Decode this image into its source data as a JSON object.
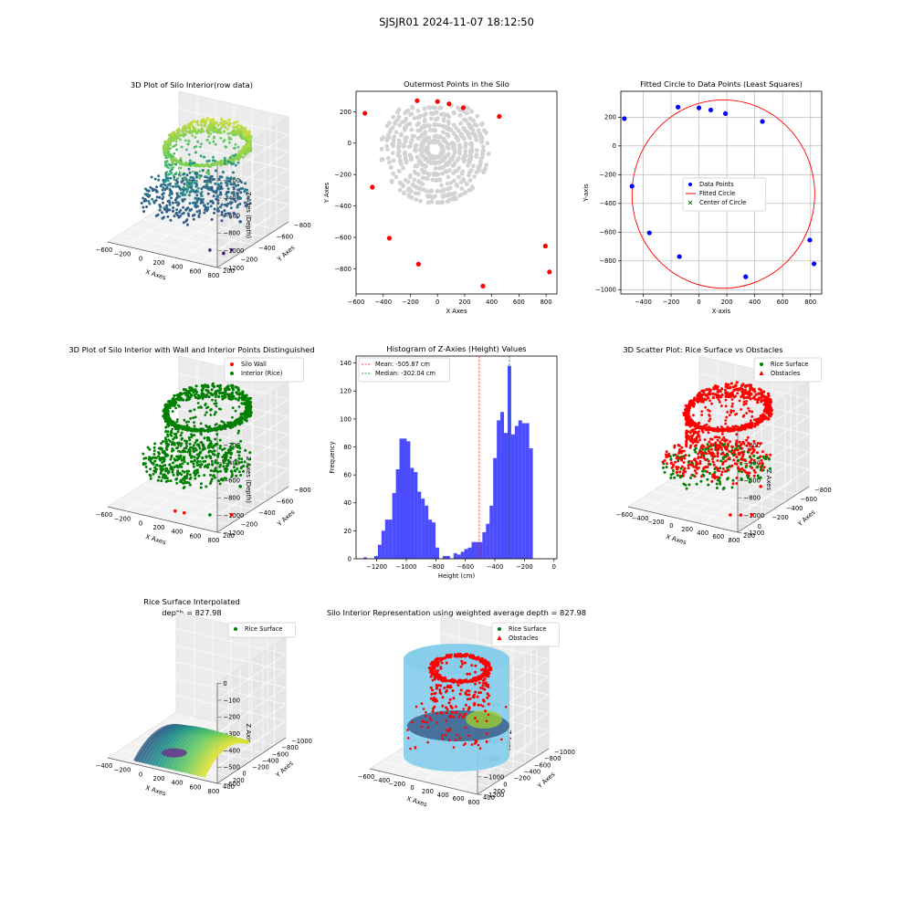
{
  "figure": {
    "suptitle": "SJSJR01 2024-11-07 18:12:50"
  },
  "charts": [
    {
      "id": "p1",
      "type": "scatter3d",
      "title": "3D Plot of Silo Interior(row data)",
      "xlabel": "X Axes",
      "ylabel": "Y Axes",
      "zlabel": "Z Axes (Depth)",
      "xticks": [
        "−600",
        "−200",
        "0",
        "200",
        "400",
        "600",
        "800"
      ],
      "yticks": [
        "200",
        "−200",
        "−400",
        "−600",
        "−800"
      ],
      "zticks": [
        "0",
        "−200",
        "−400",
        "−600",
        "−800",
        "−1000",
        "−1200"
      ],
      "colormap": "viridis"
    },
    {
      "id": "p2",
      "type": "scatter",
      "title": "Outermost Points in the Silo",
      "xlabel": "X Axes",
      "ylabel": "Y Axes",
      "xlim": [
        -600,
        880
      ],
      "ylim": [
        -960,
        330
      ],
      "xticks": [
        -600,
        -400,
        -200,
        0,
        200,
        400,
        600,
        800
      ],
      "yticks": [
        200,
        0,
        -200,
        -400,
        -600,
        -800
      ],
      "grid": false,
      "series": [
        {
          "color": "#d3d3d3",
          "role": "all points"
        },
        {
          "color": "#ff0000",
          "role": "outermost points",
          "x": [
            -535,
            -150,
            0,
            85,
            190,
            455,
            -480,
            -355,
            -140,
            335,
            795,
            825
          ],
          "y": [
            190,
            270,
            265,
            250,
            225,
            170,
            -280,
            -605,
            -770,
            -910,
            -655,
            -820
          ]
        }
      ]
    },
    {
      "id": "p3",
      "type": "scatter",
      "title": "Fitted Circle to Data Points (Least Squares)",
      "xlabel": "X-axis",
      "ylabel": "Y-axis",
      "xlim": [
        -560,
        880
      ],
      "ylim": [
        -1030,
        380
      ],
      "xticks": [
        -400,
        -200,
        0,
        200,
        400,
        600,
        800
      ],
      "yticks": [
        200,
        0,
        -200,
        -400,
        -600,
        -800,
        -1000
      ],
      "grid": true,
      "points": {
        "x": [
          -535,
          -150,
          0,
          85,
          190,
          455,
          -480,
          -355,
          -140,
          335,
          795,
          825
        ],
        "y": [
          190,
          270,
          265,
          250,
          225,
          170,
          -280,
          -605,
          -770,
          -910,
          -655,
          -820
        ]
      },
      "circle": {
        "cx": 175,
        "cy": -335,
        "r": 655
      },
      "legend": [
        "Data Points",
        "Fitted Circle",
        "Center of Circle"
      ],
      "legend_loc": "center"
    },
    {
      "id": "p4",
      "type": "scatter3d",
      "title": "3D Plot of Silo Interior with Wall and Interior Points Distinguished",
      "xlabel": "X Axes",
      "ylabel": "Y Axes",
      "zlabel": "Z Axes (Depth)",
      "xticks": [
        "−600",
        "−200",
        "0",
        "200",
        "400",
        "600",
        "800"
      ],
      "yticks": [
        "200",
        "−200",
        "−400",
        "−600",
        "−800"
      ],
      "zticks": [
        "0",
        "−200",
        "−400",
        "−600",
        "−800",
        "−1000",
        "−1200"
      ],
      "legend": [
        "Silo Wall",
        "Interior (Rice)"
      ],
      "legend_loc": "upper right"
    },
    {
      "id": "p5",
      "type": "bar",
      "title": "Histogram of Z-Axies (Height) Values",
      "xlabel": "Height (cm)",
      "ylabel": "Frequency",
      "xlim": [
        -1340,
        20
      ],
      "ylim": [
        0,
        145
      ],
      "xticks": [
        -1200,
        -1000,
        -800,
        -600,
        -400,
        -200,
        0
      ],
      "yticks": [
        0,
        20,
        40,
        60,
        80,
        100,
        120,
        140
      ],
      "bin_width": 24.4,
      "bin_start": -1290,
      "counts": [
        1,
        0,
        0,
        2,
        10,
        20,
        28,
        28,
        47,
        64,
        86,
        86,
        84,
        65,
        62,
        48,
        43,
        38,
        28,
        26,
        8,
        0,
        2,
        2,
        0,
        4,
        3,
        5,
        7,
        8,
        12,
        12,
        12,
        19,
        25,
        38,
        72,
        99,
        105,
        90,
        138,
        89,
        95,
        99,
        97,
        97,
        79
      ],
      "color": "#0000ff",
      "mean": -505.87,
      "median": -302.04,
      "legend": [
        "Mean: -505.87 cm",
        "Median: -302.04 cm"
      ],
      "legend_loc": "upper left"
    },
    {
      "id": "p6",
      "type": "scatter3d",
      "title": "3D Scatter Plot: Rice Surface vs Obstacles",
      "xlabel": "X Axes",
      "ylabel": "Y Axes",
      "zlabel": "Z Axes",
      "xticks": [
        "−600",
        "−400",
        "−200",
        "0",
        "200",
        "400",
        "600",
        "800"
      ],
      "yticks": [
        "200",
        "0",
        "−200",
        "−400",
        "−600",
        "−800"
      ],
      "zticks": [
        "0",
        "−200",
        "−400",
        "−600",
        "−800",
        "−1000",
        "−1200"
      ],
      "legend": [
        "Rice Surface",
        "Obstacles"
      ],
      "legend_loc": "upper right"
    },
    {
      "id": "p7",
      "type": "surface3d",
      "title": "Rice Surface Interpolated",
      "subtitle": "depth = 827.98",
      "xlabel": "X Axes",
      "ylabel": "Y Axes",
      "zlabel": "Z Axis",
      "xticks": [
        "−400",
        "−200",
        "0",
        "200",
        "400",
        "600",
        "800"
      ],
      "yticks": [
        "400",
        "200",
        "0",
        "−200",
        "−400",
        "−600",
        "−800",
        "−1000"
      ],
      "zticks": [
        "0",
        "−100",
        "−200",
        "−300",
        "−400",
        "−500",
        "−600"
      ],
      "legend": [
        "Rice Surface"
      ],
      "legend_loc": "upper right"
    },
    {
      "id": "p8",
      "type": "scatter3d",
      "title": "Silo Interior Representation using weighted average depth = 827.98",
      "xlabel": "X Axes",
      "ylabel": "Y Axes",
      "zlabel": "Z Axes",
      "xticks": [
        "−600",
        "−400",
        "−200",
        "0",
        "200",
        "400",
        "600",
        "800"
      ],
      "yticks": [
        "400",
        "200",
        "0",
        "−200",
        "−400",
        "−600",
        "−800",
        "−1000"
      ],
      "zticks": [
        "0",
        "−200",
        "−400",
        "−600",
        "−800",
        "−1000",
        "−1200"
      ],
      "legend": [
        "Rice Surface",
        "Obstacles"
      ],
      "legend_loc": "upper center"
    }
  ]
}
